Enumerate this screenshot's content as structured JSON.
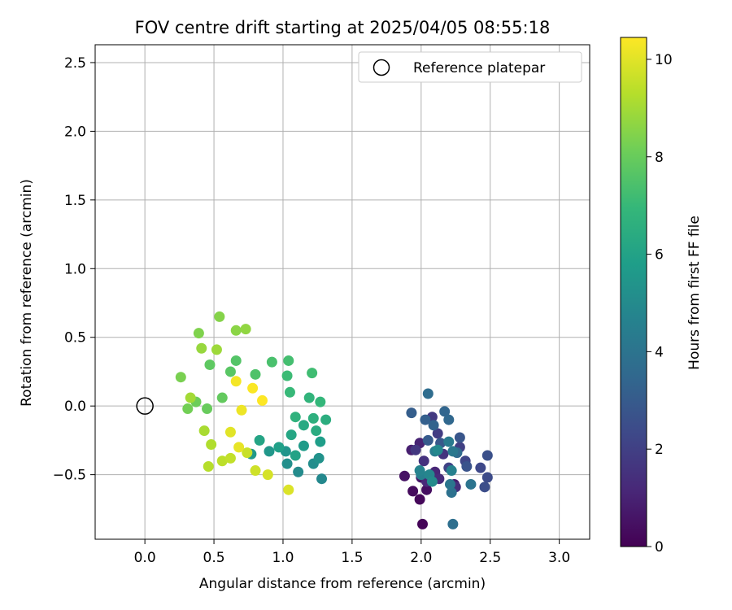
{
  "chart_data": {
    "type": "scatter",
    "title": "FOV centre drift starting at 2025/04/05 08:55:18",
    "xlabel": "Angular distance from reference (arcmin)",
    "ylabel": "Rotation from reference (arcmin)",
    "xlim": [
      -0.36,
      3.22
    ],
    "ylim": [
      -0.97,
      2.63
    ],
    "xticks": [
      "0.0",
      "0.5",
      "1.0",
      "1.5",
      "2.0",
      "2.5",
      "3.0"
    ],
    "yticks": [
      "−0.5",
      "0.0",
      "0.5",
      "1.0",
      "1.5",
      "2.0",
      "2.5"
    ],
    "grid": true,
    "legend": {
      "placement": "top-right",
      "entries": [
        "Reference platepar"
      ]
    },
    "colorbar": {
      "label": "Hours from first FF file",
      "range": [
        0,
        10.45
      ],
      "ticks": [
        "0",
        "2",
        "4",
        "6",
        "8",
        "10"
      ],
      "colormap": "viridis",
      "stops": [
        "#440154",
        "#482878",
        "#3e4989",
        "#31688e",
        "#26828e",
        "#1f9e89",
        "#35b779",
        "#6ece58",
        "#b5de2b",
        "#fde725"
      ]
    },
    "reference_point": {
      "x": 0.0,
      "y": 0.0,
      "label": "Reference platepar"
    },
    "series": [
      {
        "points": [
          [
            2.01,
            -0.86,
            0.1
          ],
          [
            1.99,
            -0.68,
            0.2
          ],
          [
            1.94,
            -0.62,
            0.3
          ],
          [
            2.04,
            -0.61,
            0.4
          ],
          [
            1.88,
            -0.51,
            0.5
          ],
          [
            2.0,
            -0.52,
            0.6
          ],
          [
            2.07,
            -0.5,
            0.7
          ],
          [
            2.24,
            -0.57,
            0.8
          ],
          [
            1.93,
            -0.32,
            0.9
          ],
          [
            1.99,
            -0.27,
            1.0
          ],
          [
            2.1,
            -0.48,
            1.1
          ],
          [
            2.04,
            -0.55,
            1.2
          ],
          [
            2.13,
            -0.53,
            1.3
          ],
          [
            2.25,
            -0.59,
            1.4
          ],
          [
            2.02,
            -0.4,
            1.5
          ],
          [
            2.16,
            -0.35,
            1.6
          ],
          [
            1.96,
            -0.32,
            1.7
          ],
          [
            2.08,
            -0.08,
            1.8
          ],
          [
            2.12,
            -0.2,
            1.9
          ],
          [
            2.28,
            -0.3,
            2.0
          ],
          [
            2.2,
            -0.45,
            2.1
          ],
          [
            2.32,
            -0.4,
            2.2
          ],
          [
            2.43,
            -0.45,
            2.3
          ],
          [
            2.48,
            -0.52,
            2.4
          ],
          [
            2.46,
            -0.59,
            2.5
          ],
          [
            2.48,
            -0.36,
            2.6
          ],
          [
            2.33,
            -0.44,
            2.7
          ],
          [
            2.28,
            -0.23,
            2.8
          ],
          [
            2.14,
            -0.27,
            2.9
          ],
          [
            2.05,
            -0.25,
            3.0
          ],
          [
            1.93,
            -0.05,
            3.1
          ],
          [
            2.03,
            -0.1,
            3.2
          ],
          [
            2.09,
            -0.14,
            3.3
          ],
          [
            2.17,
            -0.04,
            3.4
          ],
          [
            2.2,
            -0.1,
            3.5
          ],
          [
            2.26,
            -0.34,
            3.6
          ],
          [
            2.05,
            0.09,
            3.7
          ],
          [
            2.23,
            -0.86,
            3.8
          ],
          [
            2.22,
            -0.63,
            3.9
          ],
          [
            2.36,
            -0.57,
            4.0
          ],
          [
            2.21,
            -0.57,
            4.1
          ],
          [
            2.23,
            -0.33,
            4.2
          ],
          [
            2.2,
            -0.26,
            4.3
          ],
          [
            2.1,
            -0.33,
            4.4
          ],
          [
            2.0,
            -0.5,
            4.5
          ],
          [
            2.22,
            -0.47,
            4.6
          ],
          [
            1.99,
            -0.47,
            4.7
          ],
          [
            2.06,
            -0.5,
            4.8
          ],
          [
            2.12,
            -0.32,
            4.9
          ],
          [
            2.08,
            -0.55,
            5.0
          ],
          [
            1.28,
            -0.53,
            4.9
          ],
          [
            1.11,
            -0.48,
            5.0
          ],
          [
            1.22,
            -0.42,
            5.1
          ],
          [
            1.03,
            -0.42,
            5.2
          ],
          [
            1.26,
            -0.38,
            5.3
          ],
          [
            1.02,
            -0.33,
            5.4
          ],
          [
            0.9,
            -0.33,
            5.5
          ],
          [
            0.77,
            -0.35,
            5.6
          ],
          [
            1.15,
            -0.29,
            5.7
          ],
          [
            1.27,
            -0.26,
            5.8
          ],
          [
            0.97,
            -0.3,
            5.9
          ],
          [
            1.09,
            -0.36,
            6.0
          ],
          [
            0.83,
            -0.25,
            6.1
          ],
          [
            1.06,
            -0.21,
            6.2
          ],
          [
            1.15,
            -0.14,
            6.3
          ],
          [
            1.24,
            -0.18,
            6.4
          ],
          [
            1.31,
            -0.1,
            6.5
          ],
          [
            1.22,
            -0.09,
            6.6
          ],
          [
            1.09,
            -0.08,
            6.7
          ],
          [
            1.19,
            0.06,
            6.8
          ],
          [
            1.27,
            0.03,
            6.9
          ],
          [
            1.05,
            0.1,
            7.0
          ],
          [
            1.03,
            0.22,
            7.1
          ],
          [
            1.21,
            0.24,
            7.2
          ],
          [
            1.04,
            0.33,
            7.3
          ],
          [
            0.92,
            0.32,
            7.4
          ],
          [
            0.8,
            0.23,
            7.5
          ],
          [
            0.66,
            0.33,
            7.6
          ],
          [
            0.62,
            0.25,
            7.7
          ],
          [
            0.47,
            0.3,
            7.8
          ],
          [
            0.56,
            0.06,
            7.9
          ],
          [
            0.45,
            -0.02,
            8.0
          ],
          [
            0.37,
            0.03,
            8.1
          ],
          [
            0.31,
            -0.02,
            8.2
          ],
          [
            0.26,
            0.21,
            8.3
          ],
          [
            0.39,
            0.53,
            8.4
          ],
          [
            0.54,
            0.65,
            8.5
          ],
          [
            0.66,
            0.55,
            8.6
          ],
          [
            0.73,
            0.56,
            8.7
          ],
          [
            0.41,
            0.42,
            8.8
          ],
          [
            0.52,
            0.41,
            8.9
          ],
          [
            0.33,
            0.06,
            9.0
          ],
          [
            0.43,
            -0.18,
            9.1
          ],
          [
            0.48,
            -0.28,
            9.2
          ],
          [
            0.46,
            -0.44,
            9.3
          ],
          [
            0.56,
            -0.4,
            9.4
          ],
          [
            0.62,
            -0.38,
            9.5
          ],
          [
            0.74,
            -0.34,
            9.6
          ],
          [
            0.8,
            -0.47,
            9.7
          ],
          [
            0.89,
            -0.5,
            9.8
          ],
          [
            1.04,
            -0.61,
            9.9
          ],
          [
            0.62,
            -0.19,
            10.0
          ],
          [
            0.68,
            -0.3,
            10.1
          ],
          [
            0.7,
            -0.03,
            10.2
          ],
          [
            0.66,
            0.18,
            10.3
          ],
          [
            0.78,
            0.13,
            10.4
          ],
          [
            0.85,
            0.04,
            10.45
          ]
        ]
      }
    ]
  }
}
